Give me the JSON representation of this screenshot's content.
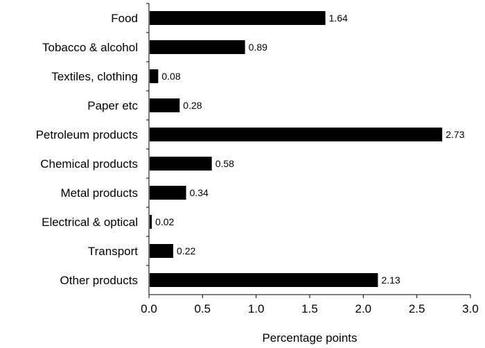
{
  "chart_data": {
    "type": "bar",
    "orientation": "horizontal",
    "categories": [
      "Food",
      "Tobacco & alcohol",
      "Textiles, clothing",
      "Paper etc",
      "Petroleum products",
      "Chemical products",
      "Metal products",
      "Electrical & optical",
      "Transport",
      "Other products"
    ],
    "values": [
      1.64,
      0.89,
      0.08,
      0.28,
      2.73,
      0.58,
      0.34,
      0.02,
      0.22,
      2.13
    ],
    "data_labels": [
      "1.64",
      "0.89",
      "0.08",
      "0.28",
      "2.73",
      "0.58",
      "0.34",
      "0.02",
      "0.22",
      "2.13"
    ],
    "title": "",
    "xlabel": "Percentage points",
    "ylabel": "",
    "xlim": [
      0,
      3
    ],
    "x_ticks": [
      0,
      0.5,
      1,
      1.5,
      2,
      2.5,
      3
    ],
    "x_tick_labels": [
      "0.0",
      "0.5",
      "1.0",
      "1.5",
      "2.0",
      "2.5",
      "3.0"
    ],
    "bar_color": "#000000",
    "grid": false,
    "legend": "none"
  }
}
